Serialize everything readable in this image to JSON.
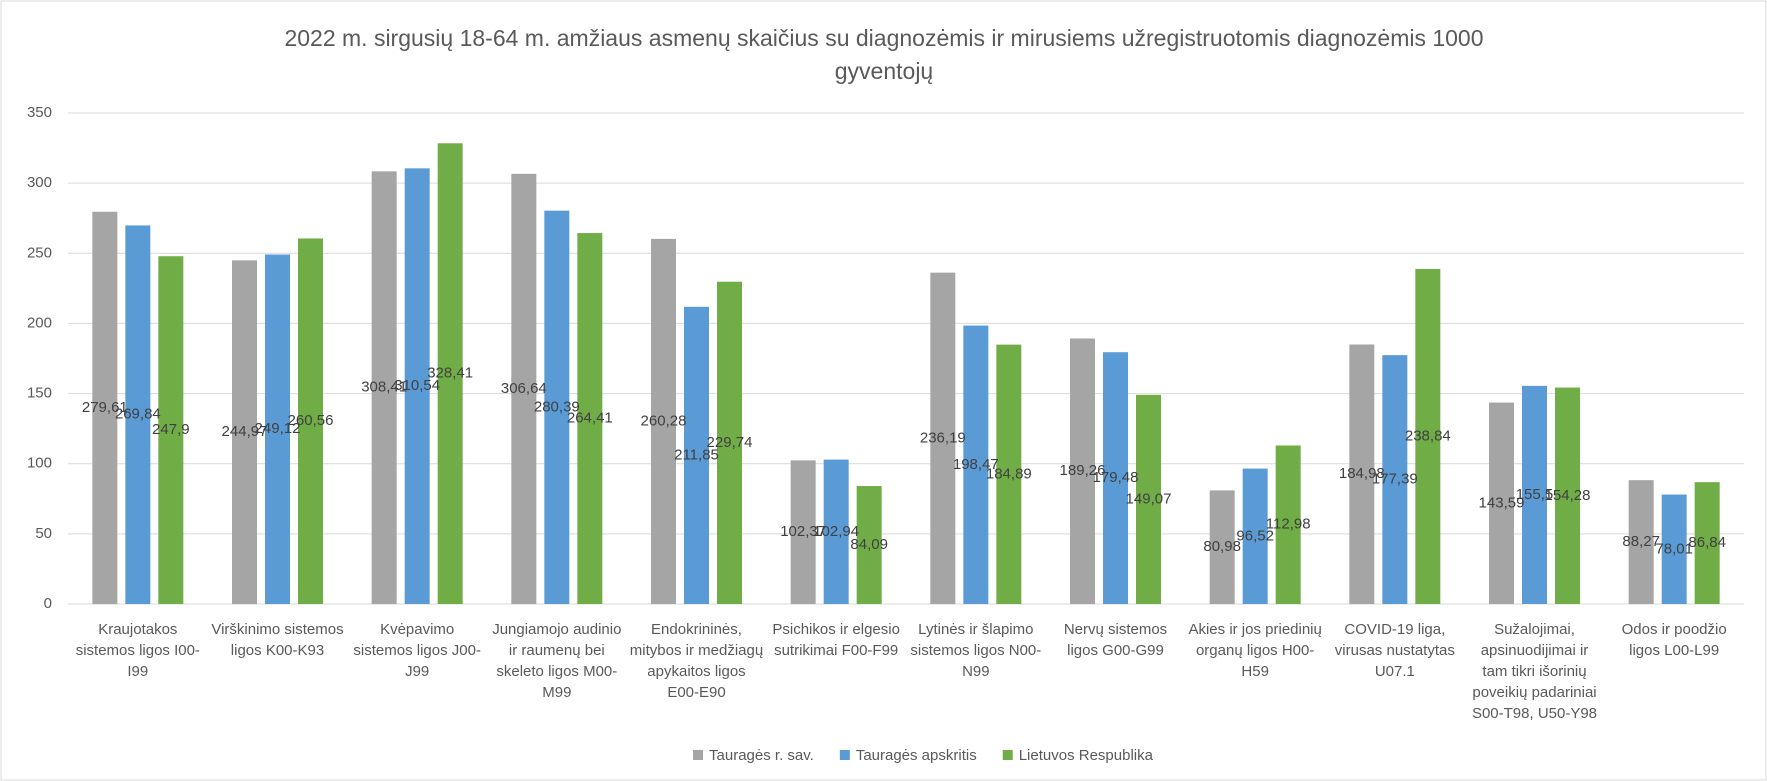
{
  "chart_data": {
    "type": "bar",
    "title": "2022 m. sirgusių 18-64 m. amžiaus asmenų skaičius su diagnozėmis ir mirusiems užregistruotomis diagnozėmis 1000 gyventojų",
    "categories": [
      "Kraujotakos sistemos ligos I00-I99",
      "Virškinimo sistemos ligos K00-K93",
      "Kvėpavimo sistemos ligos J00-J99",
      "Jungiamojo audinio ir raumenų bei skeleto ligos M00-M99",
      "Endokrininės, mitybos ir medžiagų apykaitos ligos E00-E90",
      "Psichikos ir elgesio sutrikimai F00-F99",
      "Lytinės ir šlapimo sistemos ligos N00-N99",
      "Nervų sistemos ligos G00-G99",
      "Akies ir jos priedinių organų ligos H00-H59",
      "COVID-19 liga, virusas nustatytas U07.1",
      "Sužalojimai, apsinuodijimai ir tam tikri išorinių poveikių padariniai S00-T98, U50-Y98",
      "Odos ir poodžio ligos L00-L99"
    ],
    "series": [
      {
        "name": "Tauragės r. sav.",
        "color": "#a5a5a5",
        "values": [
          279.61,
          244.97,
          308.41,
          306.64,
          260.28,
          102.37,
          236.19,
          189.26,
          80.98,
          184.98,
          143.59,
          88.27
        ],
        "value_labels": [
          "279,61",
          "244,97",
          "308,41",
          "306,64",
          "260,28",
          "102,37",
          "236,19",
          "189,26",
          "80,98",
          "184,98",
          "143,59",
          "88,27"
        ]
      },
      {
        "name": "Tauragės apskritis",
        "color": "#5b9bd5",
        "values": [
          269.84,
          249.12,
          310.54,
          280.39,
          211.85,
          102.94,
          198.47,
          179.48,
          96.52,
          177.39,
          155.5,
          78.01
        ],
        "value_labels": [
          "269,84",
          "249,12",
          "310,54",
          "280,39",
          "211,85",
          "102,94",
          "198,47",
          "179,48",
          "96,52",
          "177,39",
          "155,5",
          "78,01"
        ]
      },
      {
        "name": "Lietuvos Respublika",
        "color": "#70ad47",
        "values": [
          247.9,
          260.56,
          328.41,
          264.41,
          229.74,
          84.09,
          184.89,
          149.07,
          112.98,
          238.84,
          154.28,
          86.84
        ],
        "value_labels": [
          "247,9",
          "260,56",
          "328,41",
          "264,41",
          "229,74",
          "84,09",
          "184,89",
          "149,07",
          "112,98",
          "238,84",
          "154,28",
          "86,84"
        ]
      }
    ],
    "ylim": [
      0,
      350
    ],
    "yticks": [
      0,
      50,
      100,
      150,
      200,
      250,
      300,
      350
    ],
    "grid": true,
    "legend": "bottom"
  }
}
